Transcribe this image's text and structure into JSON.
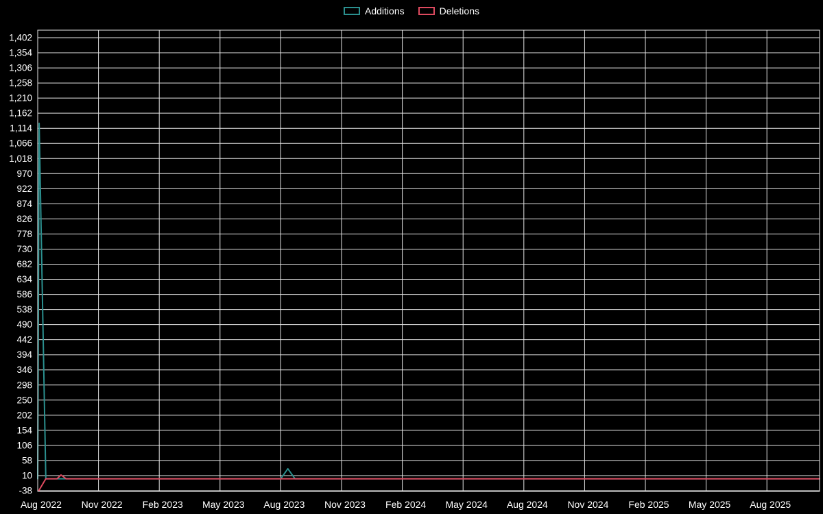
{
  "page": {
    "background": "#000000",
    "text_color": "#ffffff"
  },
  "chart_data": {
    "type": "line",
    "title": "",
    "subtitle": "",
    "legend_position": "top-center",
    "grid": true,
    "background": "#000000",
    "grid_color": "#e6e6e6",
    "text_color": "#ffffff",
    "y_axis": {
      "min": -38,
      "max": 1402,
      "tick_step": 48,
      "tick_labels": [
        "-38",
        "10",
        "58",
        "106",
        "154",
        "202",
        "250",
        "298",
        "346",
        "394",
        "442",
        "490",
        "538",
        "586",
        "634",
        "682",
        "730",
        "778",
        "826",
        "874",
        "922",
        "970",
        "1,018",
        "1,066",
        "1,114",
        "1,162",
        "1,210",
        "1,258",
        "1,306",
        "1,354",
        "1,402"
      ]
    },
    "x_axis": {
      "tick_labels": [
        "Aug 2022",
        "Nov 2022",
        "Feb 2023",
        "May 2023",
        "Aug 2023",
        "Nov 2023",
        "Feb 2024",
        "May 2024",
        "Aug 2024",
        "Nov 2024",
        "Feb 2025",
        "May 2025",
        "Aug 2025"
      ],
      "months_per_tick": 3,
      "total_months": 38.6
    },
    "series": [
      {
        "name": "Additions",
        "color": "#2b908f",
        "points_months_value": [
          [
            0,
            0
          ],
          [
            0.07,
            1130
          ],
          [
            0.4,
            0
          ],
          [
            12.0,
            0
          ],
          [
            12.35,
            32
          ],
          [
            12.7,
            0
          ],
          [
            38.6,
            0
          ]
        ]
      },
      {
        "name": "Deletions",
        "color": "#de4a5f",
        "points_months_value": [
          [
            0.05,
            -38
          ],
          [
            0.4,
            0
          ],
          [
            0.95,
            0
          ],
          [
            1.15,
            12
          ],
          [
            1.4,
            0
          ],
          [
            38.6,
            0
          ]
        ]
      }
    ]
  }
}
